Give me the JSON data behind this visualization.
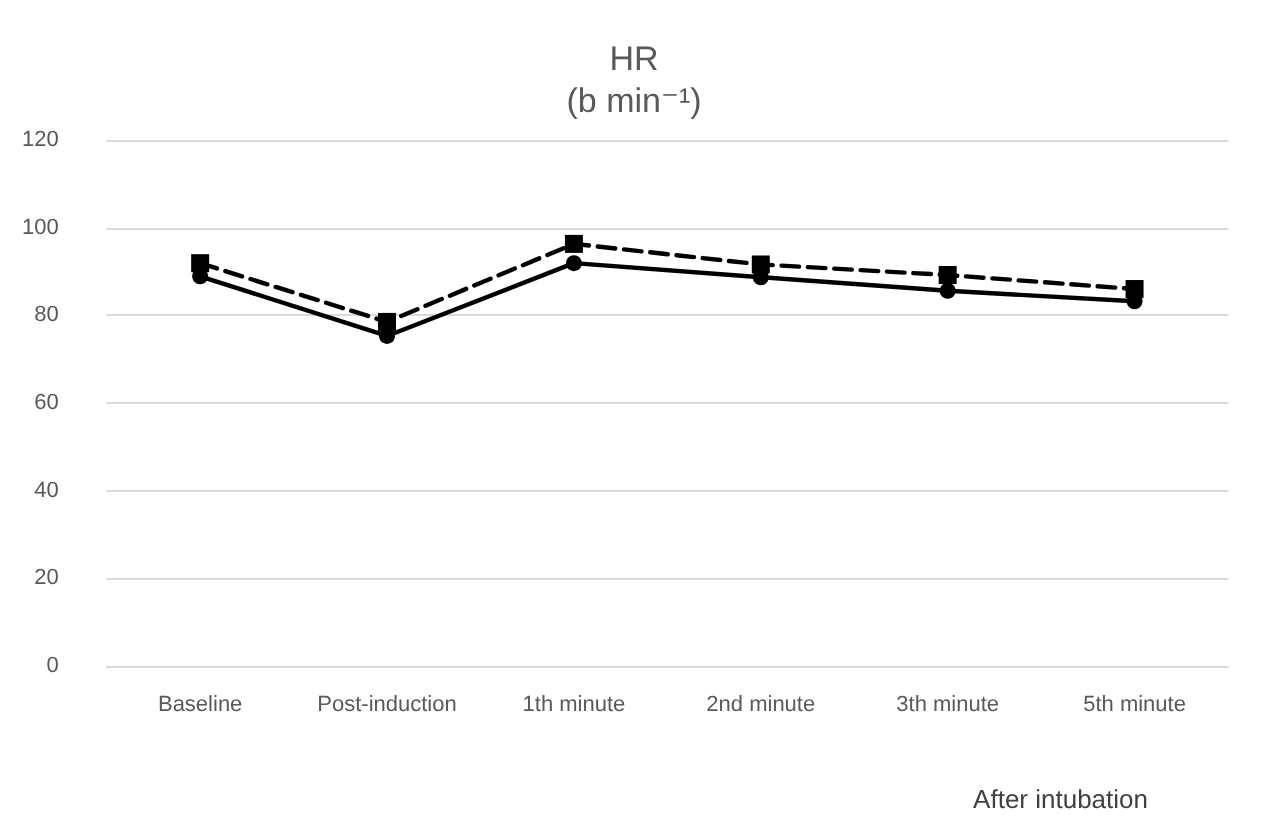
{
  "chart_data": {
    "type": "line",
    "title": "HR",
    "subtitle": "(b min⁻¹)",
    "xlabel": "After intubation",
    "categories": [
      "Baseline",
      "Post-induction",
      "1th minute",
      "2nd minute",
      "3th minute",
      "5th minute"
    ],
    "series": [
      {
        "color": "#000000",
        "marker": "circle",
        "line_style": "solid",
        "values": [
          88.9,
          75.3,
          91.9,
          88.7,
          85.6,
          83.2
        ]
      },
      {
        "color": "#000000",
        "marker": "square",
        "line_style": "dashed",
        "values": [
          91.9,
          78.5,
          96.3,
          91.6,
          89.2,
          86.0
        ]
      }
    ],
    "ylim": [
      0,
      120
    ],
    "yticks": [
      0,
      20,
      40,
      60,
      80,
      100,
      120
    ],
    "grid": "y"
  }
}
